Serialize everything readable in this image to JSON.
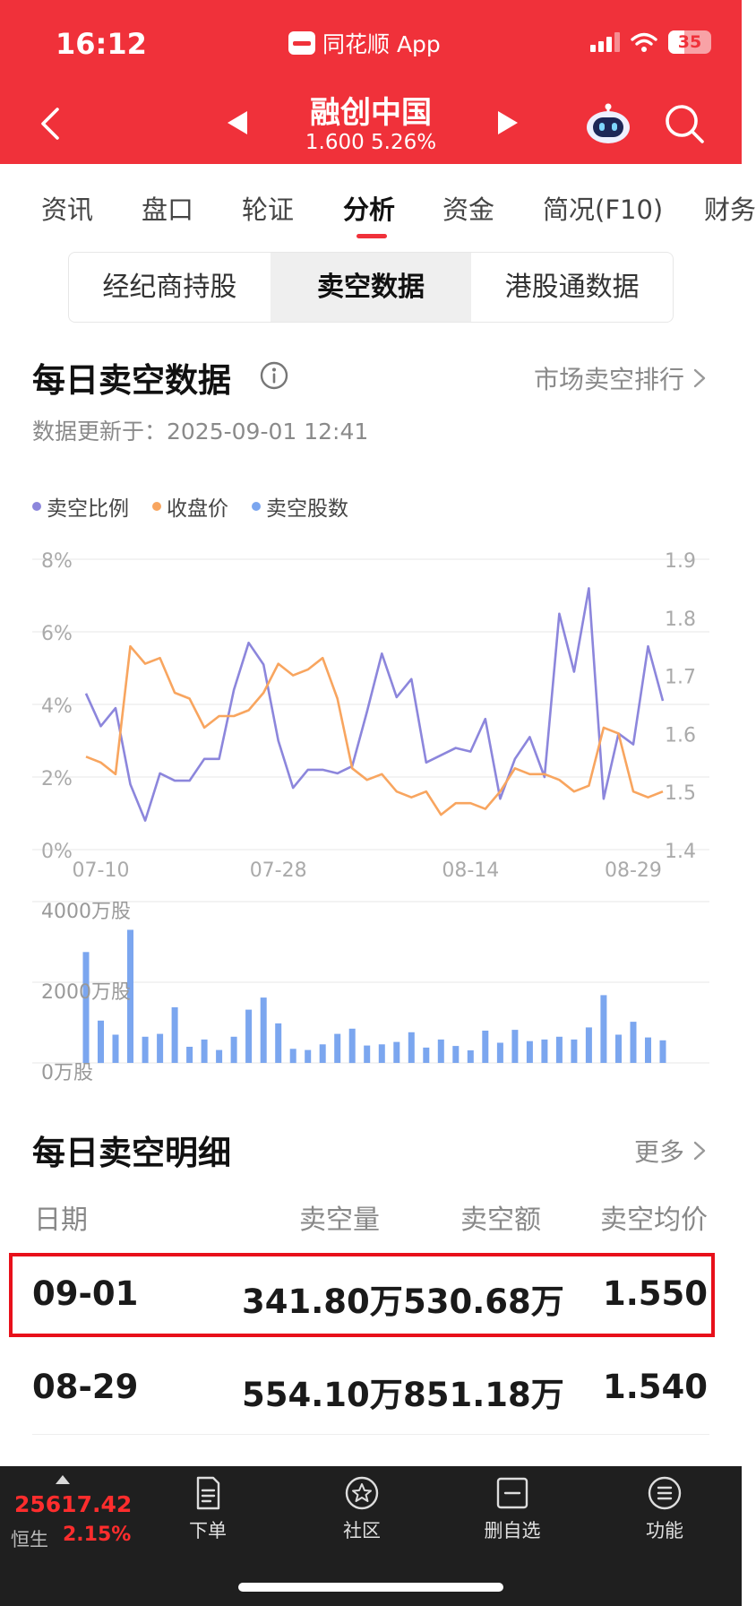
{
  "status_bar": {
    "time": "16:12",
    "app": "同花顺 App",
    "battery": "35"
  },
  "header": {
    "stock_name": "融创中国",
    "stock_price": "1.600 5.26%"
  },
  "tabs": [
    "资讯",
    "盘口",
    "轮证",
    "分析",
    "资金",
    "简况(F10)",
    "财务"
  ],
  "active_tab": "分析",
  "segments": [
    "经纪商持股",
    "卖空数据",
    "港股通数据"
  ],
  "daily_section": {
    "title": "每日卖空数据",
    "more": "市场卖空排行",
    "update_text": "数据更新于：2025-09-01 12:41"
  },
  "legend": [
    {
      "label": "卖空比例",
      "color": "#8c86dc"
    },
    {
      "label": "收盘价",
      "color": "#f8a55f"
    },
    {
      "label": "卖空股数",
      "color": "#7ba6ef"
    }
  ],
  "chart_data": [
    {
      "type": "line",
      "y_left_ticks": [
        "8%",
        "6%",
        "4%",
        "2%",
        "0%"
      ],
      "y_right_ticks": [
        "1.9",
        "1.8",
        "1.7",
        "1.6",
        "1.5",
        "1.4"
      ],
      "x_ticks": [
        {
          "label": "07-10",
          "index": 1
        },
        {
          "label": "07-28",
          "index": 13
        },
        {
          "label": "08-14",
          "index": 26
        },
        {
          "label": "08-29",
          "index": 37
        }
      ],
      "ylim_left": [
        0,
        8
      ],
      "ylim_right": [
        1.4,
        1.9
      ],
      "series": [
        {
          "name": "卖空比例",
          "axis": "left",
          "values": [
            4.3,
            3.4,
            3.9,
            1.8,
            0.8,
            2.1,
            1.9,
            1.9,
            2.5,
            2.5,
            4.4,
            5.7,
            5.1,
            3.0,
            1.7,
            2.2,
            2.2,
            2.1,
            2.3,
            3.8,
            5.4,
            4.2,
            4.7,
            2.4,
            2.6,
            2.8,
            2.7,
            3.6,
            1.4,
            2.5,
            3.1,
            2.0,
            6.5,
            4.9,
            7.2,
            1.4,
            3.2,
            2.9,
            5.6,
            4.1
          ]
        },
        {
          "name": "收盘价",
          "axis": "right",
          "values": [
            1.56,
            1.55,
            1.53,
            1.75,
            1.72,
            1.73,
            1.67,
            1.66,
            1.61,
            1.63,
            1.63,
            1.64,
            1.67,
            1.72,
            1.7,
            1.71,
            1.73,
            1.66,
            1.54,
            1.52,
            1.53,
            1.5,
            1.49,
            1.5,
            1.46,
            1.48,
            1.48,
            1.47,
            1.5,
            1.54,
            1.53,
            1.53,
            1.52,
            1.5,
            1.51,
            1.61,
            1.6,
            1.5,
            1.49,
            1.5
          ]
        }
      ]
    },
    {
      "type": "bar",
      "y_ticks": [
        "4000万股",
        "2000万股",
        "0万股"
      ],
      "ylim": [
        0,
        4000
      ],
      "series": [
        {
          "name": "卖空股数",
          "unit": "万股",
          "values": [
            2750,
            1050,
            700,
            3300,
            650,
            720,
            1380,
            400,
            580,
            320,
            650,
            1320,
            1620,
            980,
            350,
            320,
            460,
            720,
            850,
            430,
            460,
            520,
            760,
            380,
            580,
            420,
            310,
            800,
            500,
            820,
            540,
            580,
            650,
            580,
            880,
            1680,
            700,
            1020,
            630,
            560
          ]
        }
      ]
    }
  ],
  "detail_section": {
    "title": "每日卖空明细",
    "more": "更多"
  },
  "table": {
    "headers": [
      "日期",
      "卖空量",
      "卖空额",
      "卖空均价"
    ],
    "rows": [
      [
        "09-01",
        "341.80万",
        "530.68万",
        "1.550"
      ],
      [
        "08-29",
        "554.10万",
        "851.18万",
        "1.540"
      ]
    ]
  },
  "bottom_bar": {
    "index_value": "25617.42",
    "index_name": "恒生",
    "index_change": "2.15%",
    "items": [
      "下单",
      "社区",
      "删自选",
      "功能"
    ]
  }
}
